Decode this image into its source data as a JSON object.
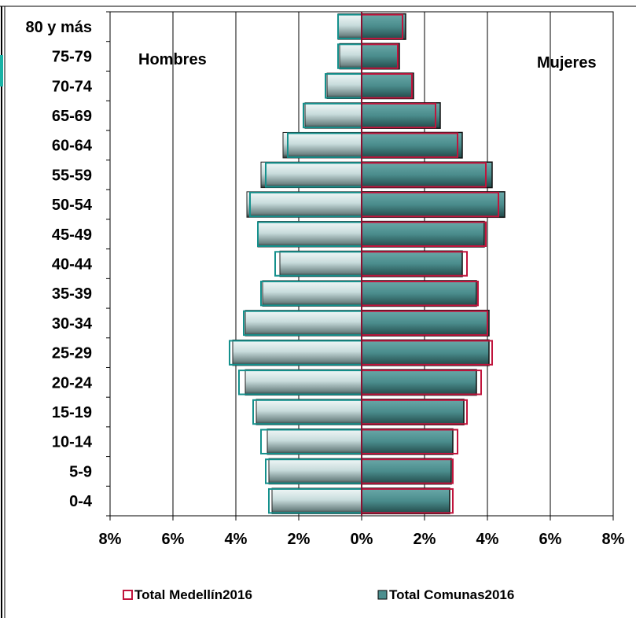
{
  "chart_data": {
    "type": "bar",
    "orientation": "horizontal",
    "layout": "population-pyramid",
    "categories": [
      "80 y más",
      "75-79",
      "70-74",
      "65-69",
      "60-64",
      "55-59",
      "50-54",
      "45-49",
      "40-44",
      "35-39",
      "30-34",
      "25-29",
      "20-24",
      "15-19",
      "10-14",
      "5-9",
      "0-4"
    ],
    "side_labels": {
      "left": "Hombres",
      "right": "Mujeres"
    },
    "x_ticks": [
      "8%",
      "6%",
      "4%",
      "2%",
      "0%",
      "2%",
      "4%",
      "6%",
      "8%"
    ],
    "xlim": [
      -8,
      8
    ],
    "grid": true,
    "legend_position": "bottom",
    "series": [
      {
        "name": "Total Medellín2016",
        "color": "#c0143c",
        "hombres": [
          0.75,
          0.75,
          1.15,
          1.85,
          2.35,
          3.05,
          3.55,
          3.3,
          2.75,
          3.2,
          3.75,
          4.2,
          3.9,
          3.45,
          3.2,
          3.05,
          2.95
        ],
        "mujeres": [
          1.3,
          1.15,
          1.6,
          2.35,
          3.05,
          3.95,
          4.35,
          3.95,
          3.35,
          3.7,
          4.0,
          4.15,
          3.8,
          3.35,
          3.05,
          2.9,
          2.9
        ]
      },
      {
        "name": "Total Comunas2016",
        "color": "#3f8686",
        "hombres": [
          0.75,
          0.7,
          1.1,
          1.8,
          2.5,
          3.2,
          3.65,
          3.3,
          2.6,
          3.15,
          3.7,
          4.1,
          3.7,
          3.35,
          3.0,
          2.95,
          2.85
        ],
        "mujeres": [
          1.4,
          1.2,
          1.65,
          2.5,
          3.2,
          4.15,
          4.55,
          3.9,
          3.2,
          3.65,
          4.05,
          4.05,
          3.65,
          3.25,
          2.9,
          2.85,
          2.8
        ]
      }
    ]
  },
  "colors": {
    "male_bar_light": "#e6f0f0",
    "male_bar_mid": "#b4cccc",
    "male_bar_dark": "#2f3d3d",
    "female_bar": "#4c8f8f",
    "female_bar_dark": "#2a5a5a",
    "medellin_outline": "#c0143c",
    "comunas_outline": "#14908c"
  }
}
